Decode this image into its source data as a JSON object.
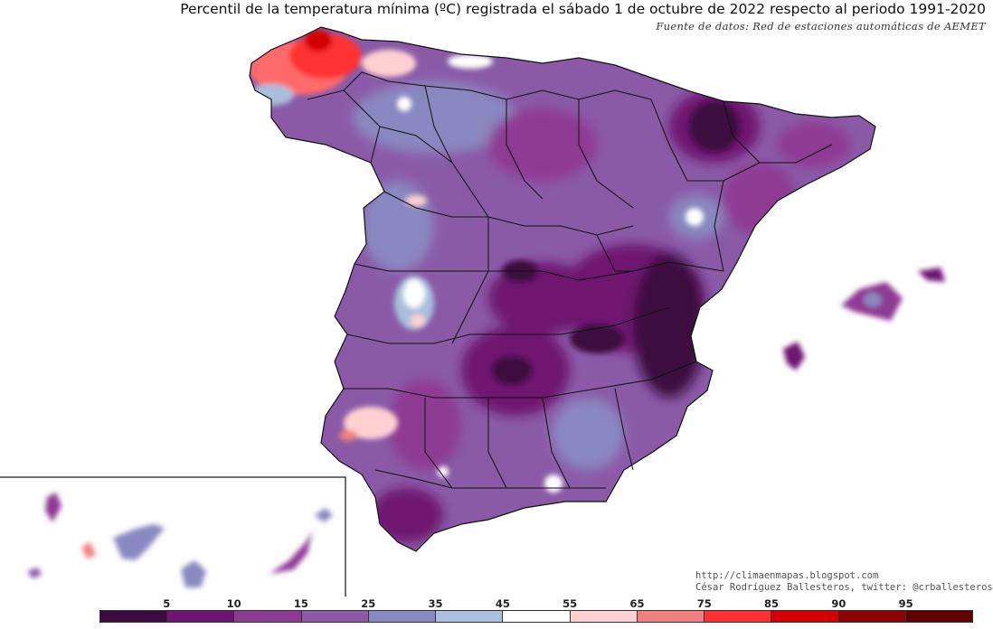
{
  "title": "Percentil de la temperatura mínima (ºC) registrada el sábado 1 de octubre de 2022 respecto al periodo 1991-2020",
  "subtitle": "Fuente de datos: Red de estaciones automáticas de AEMET",
  "credits": {
    "url": "http://climaenmapas.blogspot.com",
    "author": "César Rodríguez Ballesteros, twitter: @crballesteros"
  },
  "legend": {
    "labels": [
      "5",
      "10",
      "15",
      "25",
      "35",
      "45",
      "55",
      "65",
      "75",
      "85",
      "90",
      "95"
    ],
    "colors": [
      "#3d0a3f",
      "#6e1470",
      "#8e3a93",
      "#8a5aa7",
      "#8a88c0",
      "#a9bfdc",
      "#ffffff",
      "#ffd1d1",
      "#f08080",
      "#ff3030",
      "#d40000",
      "#8b0000",
      "#5c0000"
    ]
  },
  "map": {
    "land_base_color": "#7a4f9e",
    "sea_color": "#ffffff"
  }
}
